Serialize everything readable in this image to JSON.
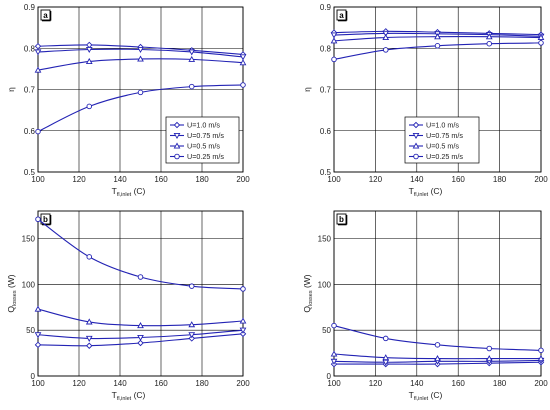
{
  "figure": {
    "colors": {
      "series": "#2323b4",
      "grid": "#000000",
      "frame": "#000000"
    }
  },
  "chart_data": [
    {
      "type": "line",
      "panel_tag": "a",
      "x": [
        100,
        125,
        150,
        175,
        200
      ],
      "xlabel": "T",
      "xlabel_sub": "fl,inlet",
      "xlabel_unit": " (C)",
      "ylabel": "η",
      "ylabel_sub": "",
      "ylabel_unit": "",
      "xlim": [
        100,
        200
      ],
      "ylim": [
        0.5,
        0.9
      ],
      "xticks": [
        100,
        120,
        140,
        160,
        180,
        200
      ],
      "yticks": [
        0.5,
        0.6,
        0.7,
        0.8,
        0.9
      ],
      "ytick_labels": [
        "0.5",
        "0.6",
        "0.7",
        "0.8",
        "0.9"
      ],
      "grid": true,
      "legend": {
        "placement": "bottom-right",
        "entries": [
          "U=1.0 m/s",
          "U=0.75 m/s",
          "U=0.5 m/s",
          "U=0.25 m/s"
        ]
      },
      "series": [
        {
          "name": "U=1.0 m/s",
          "marker": "diamond",
          "values": [
            0.805,
            0.808,
            0.803,
            0.795,
            0.785
          ]
        },
        {
          "name": "U=0.75 m/s",
          "marker": "triangle-down",
          "values": [
            0.791,
            0.797,
            0.797,
            0.791,
            0.779
          ]
        },
        {
          "name": "U=0.5 m/s",
          "marker": "triangle-up",
          "values": [
            0.747,
            0.768,
            0.774,
            0.773,
            0.765
          ]
        },
        {
          "name": "U=0.25 m/s",
          "marker": "circle",
          "values": [
            0.598,
            0.659,
            0.693,
            0.707,
            0.711
          ]
        }
      ]
    },
    {
      "type": "line",
      "panel_tag": "a",
      "x": [
        100,
        125,
        150,
        175,
        200
      ],
      "xlabel": "T",
      "xlabel_sub": "fl,inlet",
      "xlabel_unit": " (C)",
      "ylabel": "η",
      "ylabel_sub": "",
      "ylabel_unit": "",
      "xlim": [
        100,
        200
      ],
      "ylim": [
        0.5,
        0.9
      ],
      "xticks": [
        100,
        120,
        140,
        160,
        180,
        200
      ],
      "yticks": [
        0.5,
        0.6,
        0.7,
        0.8,
        0.9
      ],
      "ytick_labels": [
        "0.5",
        "0.6",
        "0.7",
        "0.8",
        "0.9"
      ],
      "grid": true,
      "legend": {
        "placement": "bottom-center",
        "entries": [
          "U=1.0 m/s",
          "U=0.75 m/s",
          "U=0.5 m/s",
          "U=0.25 m/s"
        ]
      },
      "series": [
        {
          "name": "U=1.0 m/s",
          "marker": "diamond",
          "values": [
            0.838,
            0.841,
            0.839,
            0.836,
            0.833
          ]
        },
        {
          "name": "U=0.75 m/s",
          "marker": "triangle-down",
          "values": [
            0.832,
            0.836,
            0.835,
            0.833,
            0.829
          ]
        },
        {
          "name": "U=0.5 m/s",
          "marker": "triangle-up",
          "values": [
            0.818,
            0.826,
            0.828,
            0.828,
            0.826
          ]
        },
        {
          "name": "U=0.25 m/s",
          "marker": "circle",
          "values": [
            0.773,
            0.796,
            0.806,
            0.811,
            0.813
          ]
        }
      ]
    },
    {
      "type": "line",
      "panel_tag": "b",
      "x": [
        100,
        125,
        150,
        175,
        200
      ],
      "xlabel": "T",
      "xlabel_sub": "fl,inlet",
      "xlabel_unit": " (C)",
      "ylabel": "Q",
      "ylabel_sub": "losses",
      "ylabel_unit": " (W)",
      "xlim": [
        100,
        200
      ],
      "ylim": [
        0,
        180
      ],
      "xticks": [
        100,
        120,
        140,
        160,
        180,
        200
      ],
      "yticks": [
        0,
        50,
        100,
        150
      ],
      "ytick_labels": [
        "0",
        "50",
        "100",
        "150"
      ],
      "grid": true,
      "legend": null,
      "series": [
        {
          "name": "",
          "marker": "diamond",
          "values": [
            34,
            33,
            36,
            41,
            46
          ]
        },
        {
          "name": "",
          "marker": "triangle-down",
          "values": [
            45,
            41,
            42,
            45,
            50
          ]
        },
        {
          "name": "",
          "marker": "triangle-up",
          "values": [
            73,
            59,
            55,
            56,
            60
          ]
        },
        {
          "name": "",
          "marker": "circle",
          "values": [
            171,
            130,
            108,
            98,
            95
          ]
        }
      ]
    },
    {
      "type": "line",
      "panel_tag": "b",
      "x": [
        100,
        125,
        150,
        175,
        200
      ],
      "xlabel": "T",
      "xlabel_sub": "fl,inlet",
      "xlabel_unit": " (C)",
      "ylabel": "Q",
      "ylabel_sub": "losses",
      "ylabel_unit": " (W)",
      "xlim": [
        100,
        200
      ],
      "ylim": [
        0,
        180
      ],
      "xticks": [
        100,
        120,
        140,
        160,
        180,
        200
      ],
      "yticks": [
        0,
        50,
        100,
        150
      ],
      "ytick_labels": [
        "0",
        "50",
        "100",
        "150"
      ],
      "grid": true,
      "legend": null,
      "series": [
        {
          "name": "",
          "marker": "diamond",
          "values": [
            13,
            13,
            13,
            14,
            15
          ]
        },
        {
          "name": "",
          "marker": "triangle-down",
          "values": [
            16,
            15,
            16,
            16,
            17
          ]
        },
        {
          "name": "",
          "marker": "triangle-up",
          "values": [
            24,
            20,
            19,
            19,
            19
          ]
        },
        {
          "name": "",
          "marker": "circle",
          "values": [
            55,
            41,
            34,
            30,
            28
          ]
        }
      ]
    }
  ]
}
